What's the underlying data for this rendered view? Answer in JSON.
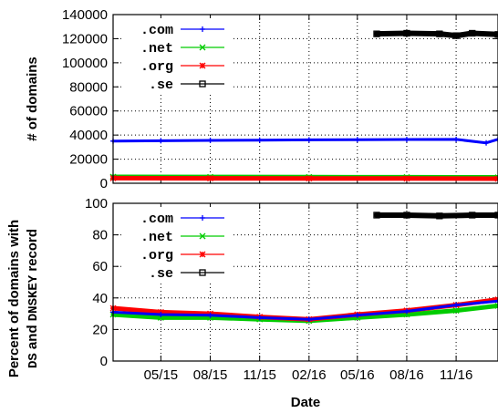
{
  "chart_data": [
    {
      "type": "line",
      "ylabel": "# of domains",
      "ylim": [
        0,
        140000
      ],
      "yticks": [
        0,
        20000,
        40000,
        60000,
        80000,
        100000,
        120000,
        140000
      ],
      "xlim": [
        "2015-02-15",
        "2017-02-01"
      ],
      "grid": true,
      "legend_position": "top-left",
      "series": [
        {
          "name": ".com",
          "color": "#0000ff",
          "marker": "plus",
          "x": [
            "2015-02-15",
            "2015-05-15",
            "2015-08-15",
            "2015-11-15",
            "2016-02-15",
            "2016-05-15",
            "2016-08-15",
            "2016-11-15",
            "2017-01-10",
            "2017-02-01"
          ],
          "y": [
            35000,
            35300,
            35600,
            35800,
            36000,
            36200,
            36300,
            36400,
            33500,
            36500
          ]
        },
        {
          "name": ".net",
          "color": "#00cc00",
          "marker": "cross",
          "x": [
            "2015-02-15",
            "2015-08-15",
            "2016-02-15",
            "2016-08-15",
            "2017-02-01"
          ],
          "y": [
            5300,
            5200,
            5100,
            5000,
            4900
          ]
        },
        {
          "name": ".org",
          "color": "#ff0000",
          "marker": "star",
          "x": [
            "2015-02-15",
            "2015-08-15",
            "2016-02-15",
            "2016-08-15",
            "2017-02-01"
          ],
          "y": [
            4200,
            4100,
            4000,
            3900,
            3800
          ]
        },
        {
          "name": ".se",
          "color": "#000000",
          "marker": "square",
          "x": [
            "2016-06-20",
            "2016-08-15",
            "2016-10-15",
            "2016-11-15",
            "2016-12-15",
            "2017-02-01"
          ],
          "y": [
            124000,
            124500,
            124000,
            122500,
            124500,
            123500
          ]
        }
      ]
    },
    {
      "type": "line",
      "xlabel": "Date",
      "ylabel_line1": "Percent of domains with",
      "ylabel_line2_parts": [
        "DS",
        " and ",
        "DNSKEY",
        " record"
      ],
      "ylim": [
        0,
        100
      ],
      "yticks": [
        0,
        20,
        40,
        60,
        80,
        100
      ],
      "xlim": [
        "2015-02-15",
        "2017-02-01"
      ],
      "xticks": [
        "05/15",
        "08/15",
        "11/15",
        "02/16",
        "05/16",
        "08/16",
        "11/16"
      ],
      "xtick_dates": [
        "2015-05-15",
        "2015-08-15",
        "2015-11-15",
        "2016-02-15",
        "2016-05-15",
        "2016-08-15",
        "2016-11-15"
      ],
      "grid": true,
      "legend_position": "top-left",
      "series": [
        {
          "name": ".com",
          "color": "#0000ff",
          "marker": "plus",
          "x": [
            "2015-02-15",
            "2015-05-15",
            "2015-08-15",
            "2015-11-15",
            "2016-02-15",
            "2016-05-15",
            "2016-08-15",
            "2016-11-15",
            "2017-02-01"
          ],
          "y": [
            31,
            29.5,
            29,
            27.5,
            26.5,
            29,
            31.5,
            35.5,
            38
          ]
        },
        {
          "name": ".net",
          "color": "#00cc00",
          "marker": "cross",
          "x": [
            "2015-02-15",
            "2015-05-15",
            "2015-08-15",
            "2015-11-15",
            "2016-02-15",
            "2016-05-15",
            "2016-08-15",
            "2016-11-15",
            "2017-02-01"
          ],
          "y": [
            29.5,
            27.5,
            27.5,
            26.5,
            25.5,
            27.5,
            29.5,
            32,
            35
          ]
        },
        {
          "name": ".org",
          "color": "#ff0000",
          "marker": "star",
          "x": [
            "2015-02-15",
            "2015-05-15",
            "2015-08-15",
            "2015-11-15",
            "2016-02-15",
            "2016-05-15",
            "2016-08-15",
            "2016-11-15",
            "2017-02-01"
          ],
          "y": [
            33.5,
            31,
            30,
            28,
            26.5,
            29.5,
            32,
            35.5,
            39
          ]
        },
        {
          "name": ".se",
          "color": "#000000",
          "marker": "square",
          "x": [
            "2016-06-20",
            "2016-08-15",
            "2016-10-15",
            "2016-12-15",
            "2017-02-01"
          ],
          "y": [
            92.5,
            92.5,
            92,
            92.5,
            92.5
          ]
        }
      ]
    }
  ]
}
